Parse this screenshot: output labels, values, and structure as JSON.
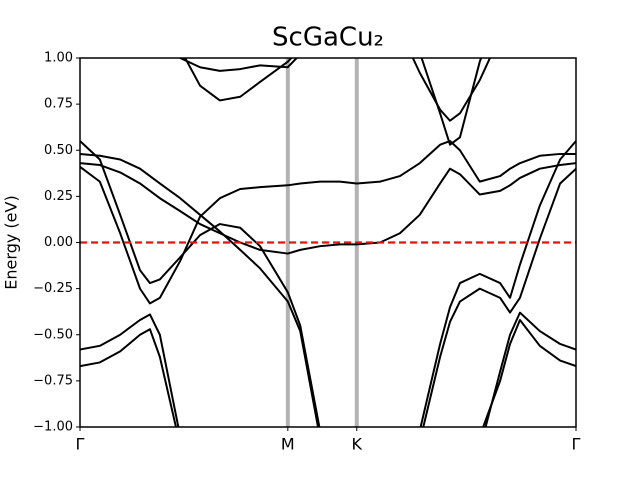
{
  "chart_data": {
    "type": "line",
    "title": "ScGaCu₂",
    "ylabel": "Energy (eV)",
    "x": [
      0,
      0.04,
      0.081,
      0.121,
      0.141,
      0.161,
      0.202,
      0.242,
      0.282,
      0.323,
      0.363,
      0.419,
      0.444,
      0.484,
      0.524,
      0.558,
      0.605,
      0.645,
      0.685,
      0.726,
      0.746,
      0.766,
      0.806,
      0.847,
      0.867,
      0.887,
      0.927,
      0.968,
      1
    ],
    "xlim": [
      0,
      1
    ],
    "xticks": [
      {
        "value": 0,
        "label": "Γ"
      },
      {
        "value": 0.419,
        "label": "M"
      },
      {
        "value": 0.558,
        "label": "K"
      },
      {
        "value": 1,
        "label": "Γ"
      }
    ],
    "ylim": [
      -1,
      1
    ],
    "yticks": [
      {
        "value": -1,
        "label": "−1.00"
      },
      {
        "value": -0.75,
        "label": "−0.75"
      },
      {
        "value": -0.5,
        "label": "−0.50"
      },
      {
        "value": -0.25,
        "label": "−0.25"
      },
      {
        "value": 0,
        "label": "0.00"
      },
      {
        "value": 0.25,
        "label": "0.25"
      },
      {
        "value": 0.5,
        "label": "0.50"
      },
      {
        "value": 0.75,
        "label": "0.75"
      },
      {
        "value": 1,
        "label": "1.00"
      }
    ],
    "symmetry_lines": true,
    "symmetry_line_color": "#b3b3b3",
    "hline": {
      "value": 0,
      "color": "#e8120c",
      "dashed": true
    },
    "series": [
      {
        "color": "#000000",
        "values": [
          -0.58,
          -0.56,
          -0.5,
          -0.42,
          -0.39,
          -0.5,
          -1.05,
          null,
          null,
          null,
          null,
          null,
          null,
          null,
          null,
          null,
          null,
          null,
          null,
          null,
          null,
          null,
          -1.12,
          -0.7,
          -0.5,
          -0.38,
          -0.48,
          -0.55,
          -0.58
        ]
      },
      {
        "color": "#000000",
        "values": [
          -0.67,
          -0.65,
          -0.59,
          -0.5,
          -0.47,
          -0.62,
          -1.1,
          null,
          null,
          null,
          null,
          null,
          null,
          null,
          null,
          null,
          null,
          null,
          null,
          null,
          null,
          null,
          -1.05,
          -0.75,
          -0.55,
          -0.42,
          -0.56,
          -0.64,
          -0.67
        ]
      },
      {
        "color": "#000000",
        "values": [
          0.55,
          0.45,
          0.15,
          -0.15,
          -0.22,
          -0.2,
          -0.08,
          0.04,
          0.1,
          0.08,
          -0.02,
          -0.27,
          -0.45,
          -1.02,
          null,
          null,
          null,
          null,
          null,
          null,
          null,
          null,
          null,
          null,
          null,
          null,
          null,
          null,
          null
        ]
      },
      {
        "color": "#000000",
        "values": [
          0.48,
          0.47,
          0.45,
          0.4,
          0.36,
          0.32,
          0.24,
          0.15,
          0.06,
          -0.04,
          -0.14,
          -0.32,
          -0.48,
          -1.06,
          null,
          null,
          null,
          null,
          null,
          null,
          null,
          null,
          null,
          null,
          null,
          null,
          null,
          null,
          null
        ]
      },
      {
        "color": "#000000",
        "values": [
          0.41,
          0.33,
          0.05,
          -0.25,
          -0.33,
          -0.3,
          -0.1,
          0.14,
          0.24,
          0.29,
          0.3,
          0.31,
          0.32,
          0.33,
          0.33,
          0.32,
          0.33,
          0.36,
          0.43,
          0.53,
          0.55,
          0.5,
          0.33,
          0.36,
          0.4,
          0.43,
          0.47,
          0.48,
          0.48
        ]
      },
      {
        "color": "#000000",
        "values": [
          0.43,
          0.42,
          0.38,
          0.32,
          0.28,
          0.24,
          0.17,
          0.1,
          0.05,
          0,
          -0.04,
          -0.06,
          -0.04,
          -0.02,
          -0.01,
          -0.01,
          0,
          0.05,
          0.15,
          0.32,
          0.4,
          0.37,
          0.26,
          0.28,
          0.31,
          0.35,
          0.4,
          0.42,
          0.43
        ]
      },
      {
        "color": "#000000",
        "values": [
          null,
          null,
          null,
          null,
          null,
          null,
          null,
          null,
          null,
          null,
          null,
          null,
          null,
          null,
          null,
          null,
          null,
          null,
          -1.02,
          -0.55,
          -0.35,
          -0.22,
          -0.17,
          -0.22,
          -0.3,
          -0.12,
          0.2,
          0.45,
          0.55
        ]
      },
      {
        "color": "#000000",
        "values": [
          null,
          null,
          null,
          null,
          null,
          null,
          null,
          null,
          null,
          null,
          null,
          null,
          null,
          null,
          null,
          null,
          null,
          null,
          -1.08,
          -0.62,
          -0.43,
          -0.32,
          -0.25,
          -0.3,
          -0.38,
          -0.3,
          0.02,
          0.32,
          0.4
        ]
      },
      {
        "color": "#000000",
        "values": [
          null,
          null,
          null,
          null,
          null,
          1.15,
          1,
          0.95,
          0.93,
          0.94,
          0.96,
          0.95,
          1.02,
          1.2,
          null,
          null,
          null,
          null,
          null,
          null,
          null,
          null,
          null,
          null,
          null,
          null,
          null,
          null,
          null
        ]
      },
      {
        "color": "#000000",
        "values": [
          null,
          null,
          null,
          null,
          null,
          1.25,
          1.05,
          0.85,
          0.77,
          0.79,
          0.87,
          0.98,
          1.05,
          null,
          null,
          null,
          null,
          null,
          null,
          null,
          null,
          null,
          null,
          null,
          null,
          null,
          null,
          null,
          null
        ]
      },
      {
        "color": "#000000",
        "values": [
          null,
          null,
          null,
          null,
          null,
          null,
          null,
          null,
          null,
          null,
          null,
          null,
          null,
          null,
          null,
          null,
          null,
          1.15,
          0.92,
          0.72,
          0.66,
          0.7,
          0.88,
          1.12,
          null,
          null,
          null,
          null,
          null
        ]
      },
      {
        "color": "#000000",
        "values": [
          null,
          null,
          null,
          null,
          null,
          null,
          null,
          null,
          null,
          null,
          null,
          null,
          null,
          null,
          null,
          null,
          null,
          null,
          1.03,
          0.7,
          0.53,
          0.57,
          0.98,
          1.3,
          null,
          null,
          null,
          null,
          null
        ]
      }
    ]
  }
}
